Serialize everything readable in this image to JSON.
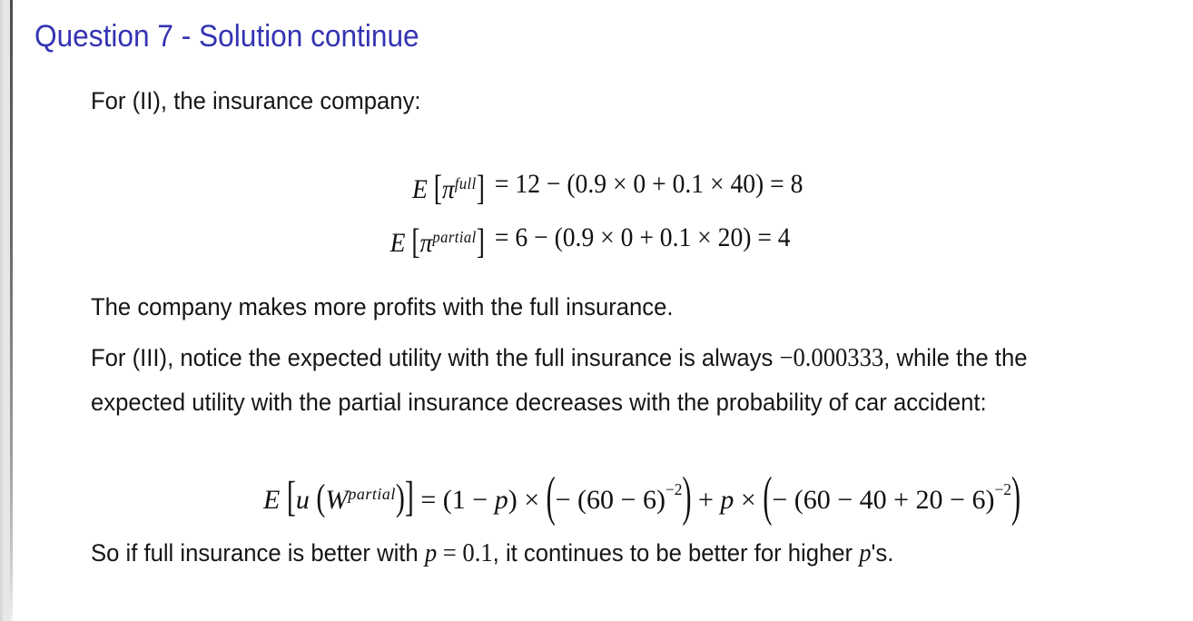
{
  "slide": {
    "title": "Question 7 - Solution continue"
  },
  "colors": {
    "title_blue": "#3433b3",
    "body_text": "#161616",
    "background": "#ffffff",
    "edge_strip_gray": "#e6e6e6",
    "edge_line_gray": "#6b6b6b"
  },
  "body": {
    "p1": "For (II), the insurance company:",
    "p2": "The company makes more profits with the full insurance.",
    "p3": {
      "line1_before": "For (III), notice the expected utility with the full insurance is always ",
      "line1_math": "−0.000333",
      "line1_after": ", while the the",
      "line2": "expected utility with the partial insurance decreases with the probability of car accident:"
    },
    "p4": {
      "before": "So if full insurance is better with ",
      "math_p": "p",
      "math_rest": " = 0.1",
      "middle": ", it continues to be better for higher ",
      "math_p2": "p",
      "after": "'s."
    }
  },
  "equations": {
    "profit_full": {
      "E": "E",
      "open": "[",
      "pi": "π",
      "sup": "full",
      "close": "]",
      "rhs": "= 12 − (0.9 × 0 + 0.1 × 40) = 8"
    },
    "profit_partial": {
      "E": "E",
      "open": "[",
      "pi": "π",
      "sup": "partial",
      "close": "]",
      "rhs": "= 6 − (0.9 × 0 + 0.1 × 20) = 4"
    },
    "expected_utility": {
      "E": "E",
      "open_bracket": "[",
      "u": "u",
      "open_paren": "(",
      "W": "W",
      "W_sup": "partial",
      "close_paren": ")",
      "close_bracket": "]",
      "equals": "=",
      "term1_open": "(1 − ",
      "term1_p": "p",
      "term1_close": ") × ",
      "big_open_1": "(",
      "inner1": "− (60 − 6)",
      "sup1": "−2",
      "big_close_1": ")",
      "plus": " + ",
      "p": "p",
      "times": " × ",
      "big_open_2": "(",
      "inner2": "− (60 − 40 + 20 − 6)",
      "sup2": "−2",
      "big_close_2": ")"
    }
  }
}
